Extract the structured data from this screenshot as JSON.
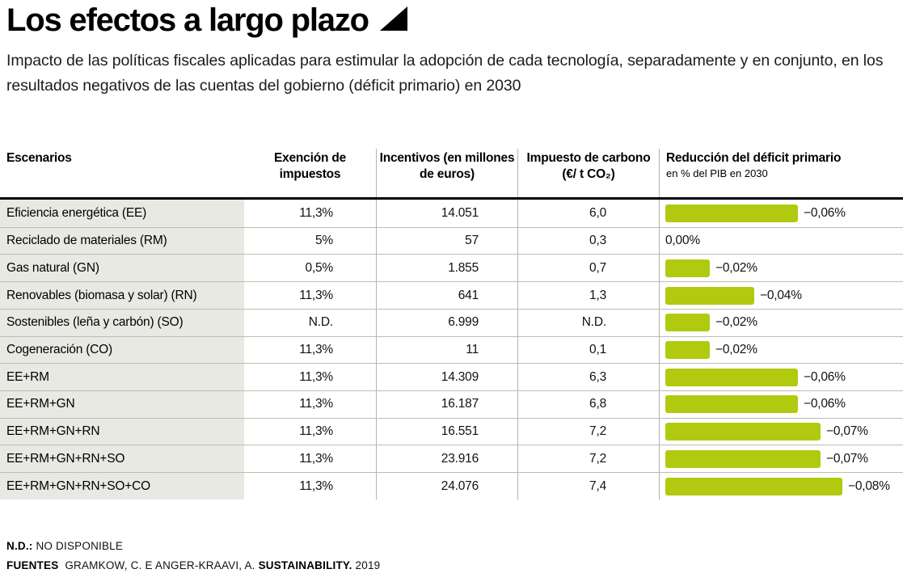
{
  "header": {
    "title": "Los efectos a largo plazo",
    "subtitle": "Impacto de las políticas fiscales aplicadas para estimular la adopción de cada tecnología, separadamente y en conjunto, en los resultados negativos de las cuentas del gobierno (déficit primario) en 2030"
  },
  "table": {
    "columns": {
      "scenarios": "Escenarios",
      "tax_exemption": "Exención de impuestos",
      "incentives": "Incentivos (en millones de euros)",
      "carbon_tax": "Impuesto de carbono (€/ t CO₂)",
      "reduction": "Reducción del déficit primario",
      "reduction_sub": "en % del PIB en 2030"
    },
    "rows": [
      {
        "scenario": "Eficiencia energética (EE)",
        "tax_exemption": "11,3%",
        "incentives": "14.051",
        "carbon_tax": "6,0",
        "reduction_label": "−0,06%",
        "reduction_value": -0.06
      },
      {
        "scenario": "Reciclado de materiales (RM)",
        "tax_exemption": "5%",
        "incentives": "57",
        "carbon_tax": "0,3",
        "reduction_label": "0,00%",
        "reduction_value": 0
      },
      {
        "scenario": "Gas natural (GN)",
        "tax_exemption": "0,5%",
        "incentives": "1.855",
        "carbon_tax": "0,7",
        "reduction_label": "−0,02%",
        "reduction_value": -0.02
      },
      {
        "scenario": "Renovables (biomasa y solar) (RN)",
        "tax_exemption": "11,3%",
        "incentives": "641",
        "carbon_tax": "1,3",
        "reduction_label": "−0,04%",
        "reduction_value": -0.04
      },
      {
        "scenario": "Sostenibles (leña y carbón) (SO)",
        "tax_exemption": "N.D.",
        "incentives": "6.999",
        "carbon_tax": "N.D.",
        "reduction_label": "−0,02%",
        "reduction_value": -0.02
      },
      {
        "scenario": "Cogeneración (CO)",
        "tax_exemption": "11,3%",
        "incentives": "11",
        "carbon_tax": "0,1",
        "reduction_label": "−0,02%",
        "reduction_value": -0.02
      },
      {
        "scenario": "EE+RM",
        "tax_exemption": "11,3%",
        "incentives": "14.309",
        "carbon_tax": "6,3",
        "reduction_label": "−0,06%",
        "reduction_value": -0.06
      },
      {
        "scenario": "EE+RM+GN",
        "tax_exemption": "11,3%",
        "incentives": "16.187",
        "carbon_tax": "6,8",
        "reduction_label": "−0,06%",
        "reduction_value": -0.06
      },
      {
        "scenario": "EE+RM+GN+RN",
        "tax_exemption": "11,3%",
        "incentives": "16.551",
        "carbon_tax": "7,2",
        "reduction_label": "−0,07%",
        "reduction_value": -0.07
      },
      {
        "scenario": "EE+RM+GN+RN+SO",
        "tax_exemption": "11,3%",
        "incentives": "23.916",
        "carbon_tax": "7,2",
        "reduction_label": "−0,07%",
        "reduction_value": -0.07
      },
      {
        "scenario": "EE+RM+GN+RN+SO+CO",
        "tax_exemption": "11,3%",
        "incentives": "24.076",
        "carbon_tax": "7,4",
        "reduction_label": "−0,08%",
        "reduction_value": -0.08
      }
    ]
  },
  "footer": {
    "nd_label": "N.D.:",
    "nd_text": "NO DISPONIBLE",
    "sources_label": "FUENTES",
    "sources_authors": "GRAMKOW, C. E ANGER-KRAAVI, A.",
    "sources_journal": "SUSTAINABILITY.",
    "sources_year": "2019"
  },
  "colors": {
    "bar_green": "#b1ca10",
    "scenario_column_bg": "#e9e9e4",
    "divider_gray": "#b3b3b3",
    "header_rule_black": "#000000"
  },
  "chart_data": {
    "type": "table",
    "title": "Los efectos a largo plazo",
    "subtitle": "Impacto de las políticas fiscales aplicadas para estimular la adopción de cada tecnología, separadamente y en conjunto, en los resultados negativos de las cuentas del gobierno (déficit primario) en 2030",
    "columns": [
      "Escenarios",
      "Exención de impuestos",
      "Incentivos (en millones de euros)",
      "Impuesto de carbono (€/ t CO₂)",
      "Reducción del déficit primario en % del PIB en 2030"
    ],
    "rows": [
      [
        "Eficiencia energética (EE)",
        "11,3%",
        14051,
        6.0,
        -0.06
      ],
      [
        "Reciclado de materiales (RM)",
        "5%",
        57,
        0.3,
        0.0
      ],
      [
        "Gas natural (GN)",
        "0,5%",
        1855,
        0.7,
        -0.02
      ],
      [
        "Renovables (biomasa y solar) (RN)",
        "11,3%",
        641,
        1.3,
        -0.04
      ],
      [
        "Sostenibles (leña y carbón) (SO)",
        "N.D.",
        6999,
        "N.D.",
        -0.02
      ],
      [
        "Cogeneración (CO)",
        "11,3%",
        11,
        0.1,
        -0.02
      ],
      [
        "EE+RM",
        "11,3%",
        14309,
        6.3,
        -0.06
      ],
      [
        "EE+RM+GN",
        "11,3%",
        16187,
        6.8,
        -0.06
      ],
      [
        "EE+RM+GN+RN",
        "11,3%",
        16551,
        7.2,
        -0.07
      ],
      [
        "EE+RM+GN+RN+SO",
        "11,3%",
        23916,
        7.2,
        -0.07
      ],
      [
        "EE+RM+GN+RN+SO+CO",
        "11,3%",
        24076,
        7.4,
        -0.08
      ]
    ],
    "embedded_bars": {
      "column": "Reducción del déficit primario en % del PIB en 2030",
      "orientation": "horizontal",
      "value_range": [
        0,
        -0.08
      ],
      "color": "#b1ca10"
    },
    "legend_position": "none",
    "grid": false
  }
}
